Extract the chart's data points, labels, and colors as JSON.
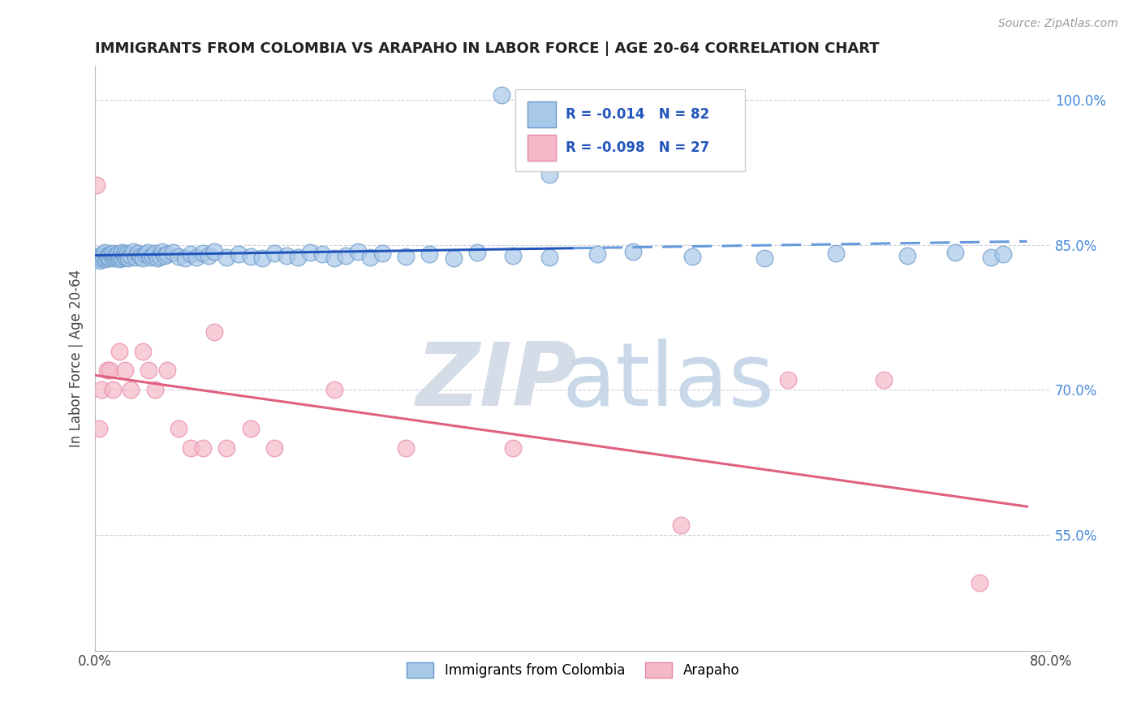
{
  "title": "IMMIGRANTS FROM COLOMBIA VS ARAPAHO IN LABOR FORCE | AGE 20-64 CORRELATION CHART",
  "source": "Source: ZipAtlas.com",
  "ylabel": "In Labor Force | Age 20-64",
  "xlim": [
    0.0,
    0.8
  ],
  "ylim": [
    0.43,
    1.035
  ],
  "yticks": [
    0.55,
    0.7,
    0.85,
    1.0
  ],
  "yticklabels": [
    "55.0%",
    "70.0%",
    "85.0%",
    "100.0%"
  ],
  "colombia_color": "#a8c8e8",
  "arapaho_color": "#f4b8c8",
  "colombia_edge": "#6898cc",
  "arapaho_edge": "#e888a8",
  "colombia_R": -0.014,
  "colombia_N": 82,
  "arapaho_R": -0.098,
  "arapaho_N": 27,
  "trend_colombia_solid_color": "#2255bb",
  "trend_colombia_dashed_color": "#6699dd",
  "trend_arapaho_color": "#e06080",
  "grid_color": "#c8ccd8",
  "watermark_zip_color": "#d4dce8",
  "watermark_atlas_color": "#c8d8e8",
  "colombia_x": [
    0.002,
    0.003,
    0.004,
    0.005,
    0.006,
    0.007,
    0.008,
    0.009,
    0.01,
    0.011,
    0.012,
    0.013,
    0.014,
    0.015,
    0.016,
    0.017,
    0.018,
    0.019,
    0.02,
    0.021,
    0.022,
    0.023,
    0.024,
    0.025,
    0.026,
    0.027,
    0.028,
    0.03,
    0.032,
    0.034,
    0.036,
    0.038,
    0.04,
    0.042,
    0.044,
    0.046,
    0.048,
    0.05,
    0.052,
    0.054,
    0.056,
    0.058,
    0.06,
    0.065,
    0.07,
    0.075,
    0.08,
    0.085,
    0.09,
    0.095,
    0.1,
    0.11,
    0.12,
    0.13,
    0.14,
    0.15,
    0.16,
    0.17,
    0.18,
    0.19,
    0.2,
    0.21,
    0.22,
    0.23,
    0.24,
    0.26,
    0.28,
    0.3,
    0.32,
    0.35,
    0.38,
    0.42,
    0.45,
    0.5,
    0.56,
    0.62,
    0.68,
    0.72,
    0.75,
    0.76,
    0.34,
    0.38
  ],
  "colombia_y": [
    0.835,
    0.838,
    0.834,
    0.836,
    0.84,
    0.838,
    0.842,
    0.835,
    0.837,
    0.839,
    0.836,
    0.84,
    0.838,
    0.841,
    0.836,
    0.839,
    0.837,
    0.84,
    0.835,
    0.838,
    0.842,
    0.836,
    0.839,
    0.841,
    0.837,
    0.84,
    0.836,
    0.839,
    0.843,
    0.837,
    0.841,
    0.838,
    0.836,
    0.84,
    0.842,
    0.837,
    0.839,
    0.841,
    0.836,
    0.838,
    0.843,
    0.839,
    0.84,
    0.842,
    0.838,
    0.836,
    0.84,
    0.837,
    0.841,
    0.839,
    0.843,
    0.837,
    0.84,
    0.838,
    0.836,
    0.841,
    0.839,
    0.837,
    0.842,
    0.84,
    0.836,
    0.839,
    0.843,
    0.837,
    0.841,
    0.838,
    0.84,
    0.836,
    0.842,
    0.839,
    0.837,
    0.84,
    0.843,
    0.838,
    0.836,
    0.841,
    0.839,
    0.842,
    0.837,
    0.84,
    1.005,
    0.923
  ],
  "arapaho_x": [
    0.001,
    0.003,
    0.005,
    0.01,
    0.012,
    0.015,
    0.02,
    0.025,
    0.03,
    0.04,
    0.045,
    0.05,
    0.06,
    0.07,
    0.08,
    0.09,
    0.1,
    0.11,
    0.13,
    0.15,
    0.2,
    0.26,
    0.35,
    0.49,
    0.58,
    0.66,
    0.74
  ],
  "arapaho_y": [
    0.912,
    0.66,
    0.7,
    0.72,
    0.72,
    0.7,
    0.74,
    0.72,
    0.7,
    0.74,
    0.72,
    0.7,
    0.72,
    0.66,
    0.64,
    0.64,
    0.76,
    0.64,
    0.66,
    0.64,
    0.7,
    0.64,
    0.64,
    0.56,
    0.71,
    0.71,
    0.5
  ]
}
